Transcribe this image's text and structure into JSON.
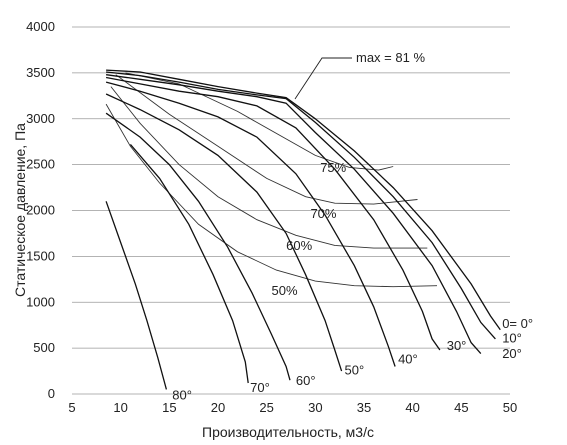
{
  "chart_data": {
    "type": "line",
    "title": "",
    "xlabel": "Производительность, м3/с",
    "ylabel": "Статическое давление, Па",
    "xlim": [
      5,
      50
    ],
    "ylim": [
      0,
      4000
    ],
    "xticks": [
      "5",
      "10",
      "15",
      "20",
      "25",
      "30",
      "35",
      "40",
      "45",
      "50"
    ],
    "yticks": [
      "0",
      "500",
      "1000",
      "1500",
      "2000",
      "2500",
      "3000",
      "3500",
      "4000"
    ],
    "grid": "horizontal",
    "annotation": "max = 81 %",
    "series": [
      {
        "name": "0= 0°",
        "label_at": [
          49.2,
          720
        ],
        "points": [
          [
            8.5,
            3530
          ],
          [
            12,
            3510
          ],
          [
            16,
            3430
          ],
          [
            20,
            3350
          ],
          [
            24,
            3280
          ],
          [
            27,
            3230
          ],
          [
            30,
            3000
          ],
          [
            34,
            2650
          ],
          [
            38,
            2250
          ],
          [
            42,
            1780
          ],
          [
            46,
            1200
          ],
          [
            48,
            850
          ],
          [
            49,
            700
          ]
        ]
      },
      {
        "name": "10°",
        "label_at": [
          49.2,
          560
        ],
        "points": [
          [
            8.5,
            3510
          ],
          [
            12,
            3470
          ],
          [
            16,
            3400
          ],
          [
            20,
            3320
          ],
          [
            24,
            3260
          ],
          [
            27,
            3220
          ],
          [
            30,
            2960
          ],
          [
            34,
            2580
          ],
          [
            38,
            2150
          ],
          [
            42,
            1650
          ],
          [
            45,
            1150
          ],
          [
            47,
            780
          ],
          [
            48.5,
            600
          ]
        ]
      },
      {
        "name": "20°",
        "label_at": [
          49.2,
          390
        ],
        "points": [
          [
            8.5,
            3480
          ],
          [
            12,
            3430
          ],
          [
            16,
            3370
          ],
          [
            20,
            3300
          ],
          [
            24,
            3240
          ],
          [
            27,
            3170
          ],
          [
            30,
            2850
          ],
          [
            34,
            2450
          ],
          [
            38,
            1970
          ],
          [
            42,
            1400
          ],
          [
            44.5,
            900
          ],
          [
            46,
            560
          ],
          [
            47,
            440
          ]
        ]
      },
      {
        "name": "30°",
        "label_at": [
          43.5,
          480
        ],
        "points": [
          [
            8.5,
            3450
          ],
          [
            12,
            3380
          ],
          [
            16,
            3300
          ],
          [
            20,
            3240
          ],
          [
            24,
            3140
          ],
          [
            28,
            2900
          ],
          [
            32,
            2450
          ],
          [
            36,
            1900
          ],
          [
            39,
            1350
          ],
          [
            41,
            900
          ],
          [
            42,
            600
          ],
          [
            42.8,
            480
          ]
        ]
      },
      {
        "name": "40°",
        "label_at": [
          38.5,
          330
        ],
        "points": [
          [
            8.5,
            3400
          ],
          [
            12,
            3300
          ],
          [
            16,
            3170
          ],
          [
            20,
            3020
          ],
          [
            24,
            2800
          ],
          [
            28,
            2400
          ],
          [
            31,
            1950
          ],
          [
            34,
            1400
          ],
          [
            36,
            950
          ],
          [
            37.5,
            520
          ],
          [
            38.2,
            300
          ]
        ]
      },
      {
        "name": "50°",
        "label_at": [
          33,
          210
        ],
        "points": [
          [
            8.5,
            3270
          ],
          [
            12,
            3100
          ],
          [
            16,
            2880
          ],
          [
            20,
            2600
          ],
          [
            24,
            2200
          ],
          [
            27,
            1750
          ],
          [
            29,
            1300
          ],
          [
            31,
            800
          ],
          [
            32,
            480
          ],
          [
            32.7,
            250
          ]
        ]
      },
      {
        "name": "60°",
        "label_at": [
          28,
          100
        ],
        "points": [
          [
            8.5,
            3060
          ],
          [
            12,
            2800
          ],
          [
            15,
            2500
          ],
          [
            18,
            2100
          ],
          [
            21,
            1600
          ],
          [
            23.5,
            1100
          ],
          [
            25.5,
            650
          ],
          [
            27,
            300
          ],
          [
            27.4,
            150
          ]
        ]
      },
      {
        "name": "70°",
        "label_at": [
          23.3,
          20
        ],
        "points": [
          [
            11,
            2720
          ],
          [
            14,
            2350
          ],
          [
            17,
            1850
          ],
          [
            19.5,
            1300
          ],
          [
            21.5,
            800
          ],
          [
            22.8,
            350
          ],
          [
            23.1,
            120
          ]
        ]
      },
      {
        "name": "80°",
        "label_at": [
          15.3,
          -60
        ],
        "points": [
          [
            8.5,
            2100
          ],
          [
            10,
            1650
          ],
          [
            11.5,
            1200
          ],
          [
            12.7,
            800
          ],
          [
            13.8,
            400
          ],
          [
            14.7,
            50
          ]
        ]
      }
    ],
    "efficiency_curves": [
      {
        "label": "75%",
        "label_at": [
          30.5,
          2420
        ],
        "points": [
          [
            10.5,
            3500
          ],
          [
            16,
            3380
          ],
          [
            22,
            3080
          ],
          [
            27,
            2780
          ],
          [
            30,
            2600
          ],
          [
            33.5,
            2470
          ],
          [
            36.5,
            2440
          ],
          [
            38,
            2480
          ]
        ]
      },
      {
        "label": "70%",
        "label_at": [
          29.5,
          1920
        ],
        "points": [
          [
            9.5,
            3480
          ],
          [
            15,
            3050
          ],
          [
            20,
            2700
          ],
          [
            25,
            2350
          ],
          [
            29,
            2150
          ],
          [
            32,
            2080
          ],
          [
            36,
            2070
          ],
          [
            40.5,
            2120
          ]
        ]
      },
      {
        "label": "60%",
        "label_at": [
          27,
          1570
        ],
        "points": [
          [
            9,
            3350
          ],
          [
            12,
            2950
          ],
          [
            16,
            2500
          ],
          [
            20,
            2150
          ],
          [
            24,
            1900
          ],
          [
            28,
            1730
          ],
          [
            32,
            1620
          ],
          [
            36,
            1590
          ],
          [
            41.5,
            1590
          ]
        ]
      },
      {
        "label": "50%",
        "label_at": [
          25.5,
          1080
        ],
        "points": [
          [
            8.5,
            3160
          ],
          [
            11,
            2700
          ],
          [
            14,
            2300
          ],
          [
            18,
            1850
          ],
          [
            22,
            1550
          ],
          [
            26,
            1350
          ],
          [
            30,
            1230
          ],
          [
            34,
            1180
          ],
          [
            38,
            1170
          ],
          [
            42.5,
            1180
          ]
        ]
      }
    ]
  }
}
